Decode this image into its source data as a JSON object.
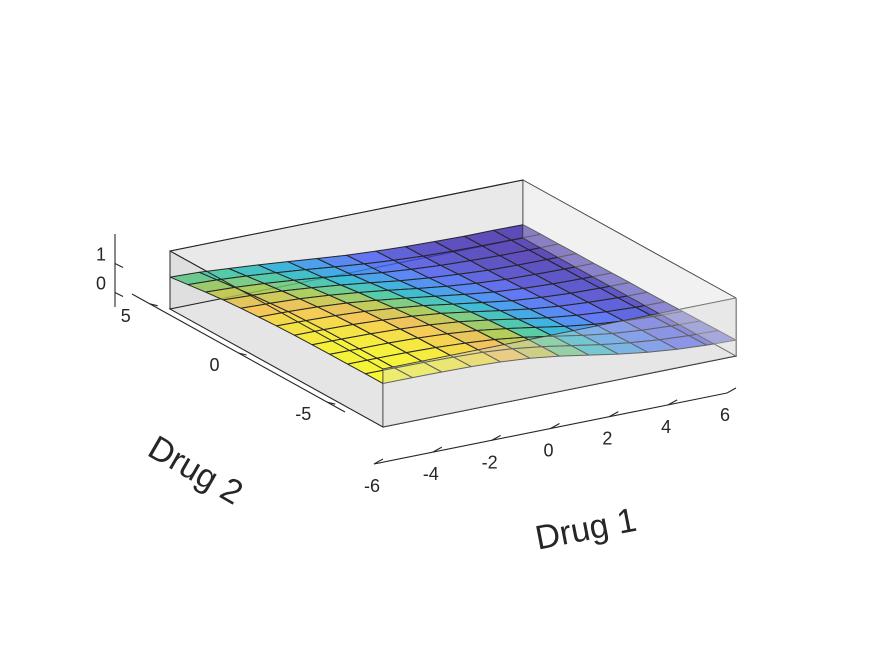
{
  "chart_data": {
    "type": "surface",
    "xlabel": "Drug 1",
    "ylabel": "Drug 2",
    "zlabel": "",
    "xlim": [
      -6,
      6
    ],
    "ylim": [
      -6,
      6
    ],
    "zlim": [
      -0.5,
      1.5
    ],
    "x_ticks": [
      -6,
      -4,
      -2,
      0,
      2,
      4,
      6
    ],
    "y_ticks": [
      -5,
      0,
      5
    ],
    "z_ticks": [
      0,
      1
    ],
    "grid": false,
    "box": true,
    "colormap": "parula",
    "face_alpha": 0.8,
    "x": [
      -6,
      -5,
      -4,
      -3,
      -2,
      -1,
      0,
      1,
      2,
      3,
      4,
      5,
      6
    ],
    "y": [
      -6,
      -5,
      -4,
      -3,
      -2,
      -1,
      0,
      1,
      2,
      3,
      4,
      5,
      6
    ],
    "z": [
      [
        1.0,
        1.0,
        0.99,
        0.97,
        0.93,
        0.85,
        0.72,
        0.55,
        0.38,
        0.24,
        0.14,
        0.08,
        0.05
      ],
      [
        1.0,
        0.99,
        0.98,
        0.96,
        0.92,
        0.84,
        0.71,
        0.54,
        0.37,
        0.23,
        0.13,
        0.07,
        0.04
      ],
      [
        0.99,
        0.99,
        0.98,
        0.95,
        0.9,
        0.82,
        0.69,
        0.52,
        0.35,
        0.21,
        0.12,
        0.06,
        0.03
      ],
      [
        0.99,
        0.98,
        0.97,
        0.94,
        0.88,
        0.79,
        0.65,
        0.49,
        0.32,
        0.19,
        0.1,
        0.05,
        0.02
      ],
      [
        0.98,
        0.97,
        0.95,
        0.91,
        0.85,
        0.75,
        0.61,
        0.44,
        0.28,
        0.16,
        0.08,
        0.03,
        0.01
      ],
      [
        0.97,
        0.96,
        0.93,
        0.88,
        0.81,
        0.7,
        0.55,
        0.39,
        0.24,
        0.13,
        0.06,
        0.02,
        0.0
      ],
      [
        0.95,
        0.93,
        0.9,
        0.84,
        0.75,
        0.63,
        0.48,
        0.33,
        0.19,
        0.1,
        0.04,
        0.01,
        0.0
      ],
      [
        0.92,
        0.9,
        0.86,
        0.79,
        0.68,
        0.55,
        0.41,
        0.27,
        0.15,
        0.07,
        0.02,
        0.0,
        -0.01
      ],
      [
        0.88,
        0.85,
        0.8,
        0.72,
        0.61,
        0.48,
        0.34,
        0.21,
        0.11,
        0.04,
        0.01,
        -0.01,
        -0.02
      ],
      [
        0.83,
        0.79,
        0.73,
        0.64,
        0.53,
        0.4,
        0.27,
        0.16,
        0.08,
        0.02,
        -0.01,
        -0.02,
        -0.02
      ],
      [
        0.76,
        0.72,
        0.65,
        0.56,
        0.45,
        0.33,
        0.21,
        0.12,
        0.05,
        0.01,
        -0.02,
        -0.03,
        -0.03
      ],
      [
        0.68,
        0.64,
        0.57,
        0.48,
        0.38,
        0.27,
        0.17,
        0.09,
        0.03,
        0.0,
        -0.02,
        -0.03,
        -0.03
      ],
      [
        0.6,
        0.56,
        0.49,
        0.41,
        0.32,
        0.22,
        0.13,
        0.07,
        0.02,
        -0.01,
        -0.03,
        -0.03,
        -0.04
      ]
    ]
  }
}
